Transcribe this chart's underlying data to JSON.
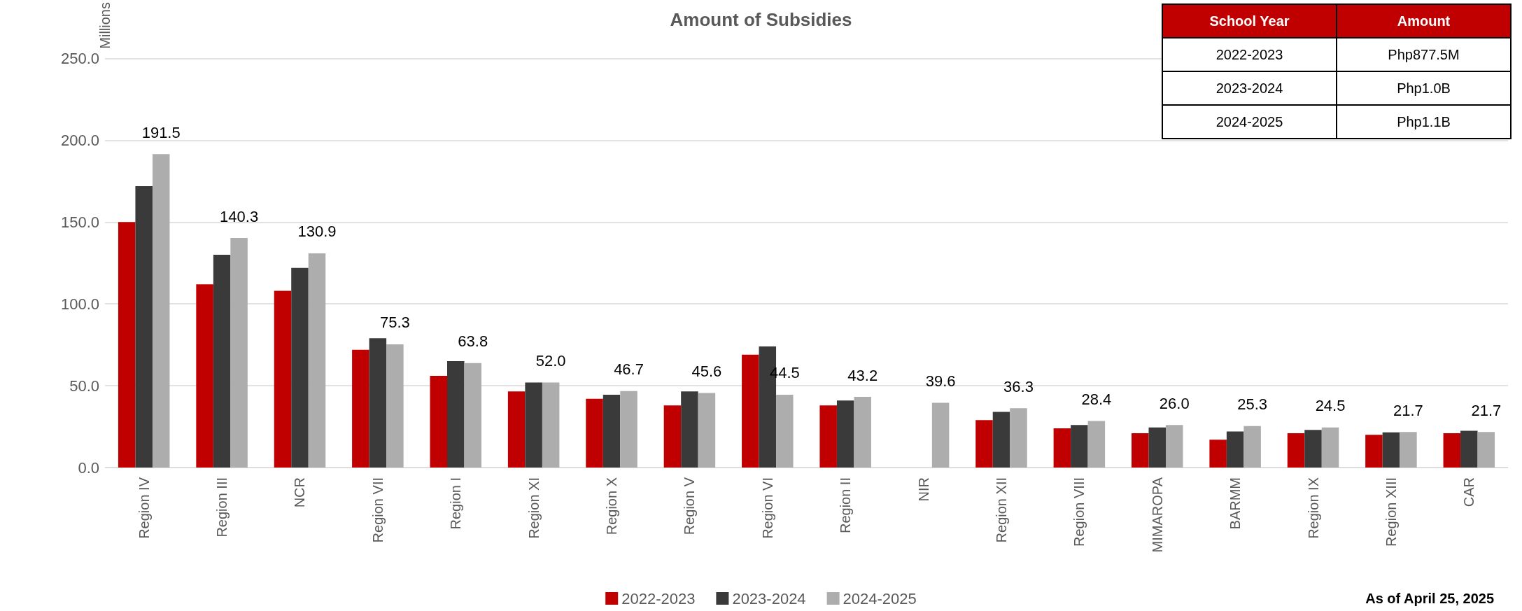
{
  "chart_data": {
    "type": "bar",
    "title": "Amount of Subsidies",
    "ylabel": "Millions",
    "categories": [
      "Region IV",
      "Region III",
      "NCR",
      "Region VII",
      "Region I",
      "Region XI",
      "Region X",
      "Region V",
      "Region VI",
      "Region II",
      "NIR",
      "Region XII",
      "Region VIII",
      "MIMAROPA",
      "BARMM",
      "Region IX",
      "Region XIII",
      "CAR"
    ],
    "series": [
      {
        "name": "2022-2023",
        "color": "#c00000",
        "values": [
          150,
          112,
          108,
          72,
          56,
          46.5,
          42,
          38,
          69,
          38,
          null,
          29,
          24,
          21,
          17,
          21,
          20,
          21
        ]
      },
      {
        "name": "2023-2024",
        "color": "#3a3a3a",
        "values": [
          172,
          130,
          122,
          79,
          65,
          52,
          44.5,
          46.5,
          74,
          41,
          null,
          34,
          26,
          24.5,
          22,
          23,
          21.5,
          22.5
        ]
      },
      {
        "name": "2024-2025",
        "color": "#adadad",
        "values": [
          191.5,
          140.3,
          130.9,
          75.3,
          63.8,
          52.0,
          46.7,
          45.6,
          44.5,
          43.2,
          39.6,
          36.3,
          28.4,
          26.0,
          25.3,
          24.5,
          21.7,
          21.7
        ],
        "value_labels": [
          "191.5",
          "140.3",
          "130.9",
          "75.3",
          "63.8",
          "52.0",
          "46.7",
          "45.6",
          "44.5",
          "43.2",
          "39.6",
          "36.3",
          "28.4",
          "26.0",
          "25.3",
          "24.5",
          "21.7",
          "21.7"
        ]
      }
    ],
    "ylim": [
      0,
      250
    ],
    "yticks": [
      {
        "value": 0,
        "label": "0.0"
      },
      {
        "value": 50,
        "label": "50.0"
      },
      {
        "value": 100,
        "label": "100.0"
      },
      {
        "value": 150,
        "label": "150.0"
      },
      {
        "value": 200,
        "label": "200.0"
      },
      {
        "value": 250,
        "label": "250.0"
      }
    ],
    "grid": "y",
    "legend": "bottom",
    "annotations": [
      "School Year",
      "Amount",
      "2022-2023",
      "Php877.5M",
      "2023-2024",
      "Php1.0B",
      "2024-2025",
      "Php1.1B",
      "As of April 25, 2025"
    ]
  }
}
